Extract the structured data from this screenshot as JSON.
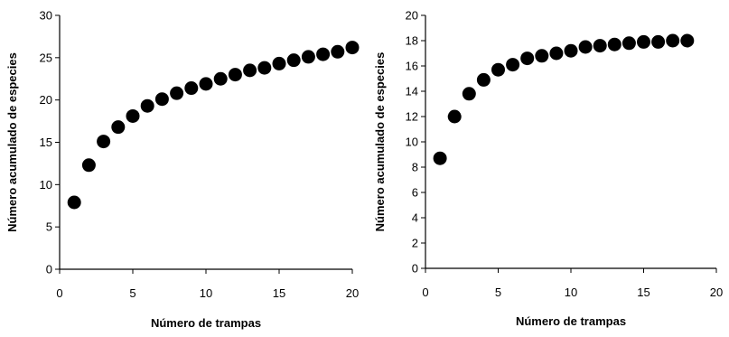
{
  "chart_data": [
    {
      "type": "scatter",
      "title": "",
      "xlabel": "Número de trampas",
      "ylabel": "Número acumulado de especies",
      "xlim": [
        0,
        20
      ],
      "ylim": [
        0,
        30
      ],
      "xticks": [
        0,
        5,
        10,
        15,
        20
      ],
      "yticks": [
        0,
        5,
        10,
        15,
        20,
        25,
        30
      ],
      "grid": false,
      "series": [
        {
          "color": "#000000",
          "x": [
            1,
            2,
            3,
            4,
            5,
            6,
            7,
            8,
            9,
            10,
            11,
            12,
            13,
            14,
            15,
            16,
            17,
            18,
            19,
            20
          ],
          "y": [
            7.9,
            12.3,
            15.1,
            16.8,
            18.1,
            19.3,
            20.1,
            20.8,
            21.4,
            21.9,
            22.5,
            23.0,
            23.5,
            23.8,
            24.3,
            24.7,
            25.1,
            25.4,
            25.7,
            26.2
          ]
        }
      ]
    },
    {
      "type": "scatter",
      "title": "",
      "xlabel": "Número de trampas",
      "ylabel": "Número acumulado de especies",
      "xlim": [
        0,
        20
      ],
      "ylim": [
        0,
        20
      ],
      "xticks": [
        0,
        5,
        10,
        15,
        20
      ],
      "yticks": [
        0,
        2,
        4,
        6,
        8,
        10,
        12,
        14,
        16,
        18,
        20
      ],
      "grid": false,
      "series": [
        {
          "color": "#000000",
          "x": [
            1,
            2,
            3,
            4,
            5,
            6,
            7,
            8,
            9,
            10,
            11,
            12,
            13,
            14,
            15,
            16,
            17,
            18
          ],
          "y": [
            8.7,
            12.0,
            13.8,
            14.9,
            15.7,
            16.1,
            16.6,
            16.8,
            17.0,
            17.2,
            17.5,
            17.6,
            17.7,
            17.8,
            17.9,
            17.9,
            18.0,
            18.0
          ]
        }
      ]
    }
  ]
}
